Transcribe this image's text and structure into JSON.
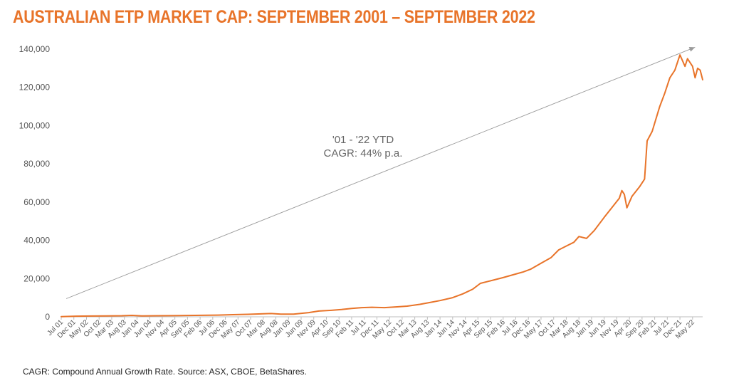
{
  "title": "AUSTRALIAN ETP MARKET CAP: SEPTEMBER 2001 – SEPTEMBER 2022",
  "footnote": "CAGR: Compound Annual Growth Rate. Source: ASX, CBOE, BetaShares.",
  "colors": {
    "title": "#e8742a",
    "line": "#e8742a",
    "trend": "#9a9a9a",
    "axis_text": "#555555",
    "annotation": "#666666"
  },
  "chart_data": {
    "type": "line",
    "ylim": [
      0,
      140000
    ],
    "yticks": [
      0,
      20000,
      40000,
      60000,
      80000,
      100000,
      120000,
      140000
    ],
    "ytick_labels": [
      "0",
      "20,000",
      "40,000",
      "60,000",
      "80,000",
      "100,000",
      "120,000",
      "140,000"
    ],
    "xlim": [
      "2001-07",
      "2022-09"
    ],
    "x_tick_labels": [
      "Jul 01",
      "Dec 01",
      "May 02",
      "Oct 02",
      "Mar 03",
      "Aug 03",
      "Jan 04",
      "Jun 04",
      "Nov 04",
      "Apr 05",
      "Sep 05",
      "Feb 06",
      "Jul 06",
      "Dec 06",
      "May 07",
      "Oct 07",
      "Mar 08",
      "Aug 08",
      "Jan 09",
      "Jun 09",
      "Nov 09",
      "Apr 10",
      "Sep 10",
      "Feb 11",
      "Jul 11",
      "Dec 11",
      "May 12",
      "Oct 12",
      "Mar 13",
      "Aug 13",
      "Jan 14",
      "Jun 14",
      "Nov 14",
      "Apr 15",
      "Sep 15",
      "Feb 16",
      "Jul 16",
      "Dec 16",
      "May 17",
      "Oct 17",
      "Mar 18",
      "Aug 18",
      "Jan 19",
      "Jun 19",
      "Nov 19",
      "Apr 20",
      "Sep 20",
      "Feb 21",
      "Jul 21",
      "Dec 21",
      "May 22"
    ],
    "annotation": {
      "lines": [
        "'01 - '22 YTD",
        "CAGR: 44% p.a."
      ]
    },
    "trend_line": {
      "start": [
        "2001-09",
        9500
      ],
      "end": [
        "2022-06",
        141000
      ]
    },
    "series": [
      {
        "points": [
          [
            "2001-07",
            100
          ],
          [
            "2002-01",
            350
          ],
          [
            "2002-07",
            400
          ],
          [
            "2003-01",
            500
          ],
          [
            "2003-07",
            550
          ],
          [
            "2003-11",
            750
          ],
          [
            "2004-03",
            500
          ],
          [
            "2004-09",
            550
          ],
          [
            "2005-03",
            600
          ],
          [
            "2005-09",
            700
          ],
          [
            "2006-03",
            800
          ],
          [
            "2006-09",
            900
          ],
          [
            "2007-03",
            1100
          ],
          [
            "2007-09",
            1300
          ],
          [
            "2008-03",
            1600
          ],
          [
            "2008-06",
            1700
          ],
          [
            "2008-10",
            1400
          ],
          [
            "2009-03",
            1400
          ],
          [
            "2009-09",
            2200
          ],
          [
            "2010-01",
            3000
          ],
          [
            "2010-06",
            3400
          ],
          [
            "2010-10",
            3800
          ],
          [
            "2011-02",
            4400
          ],
          [
            "2011-06",
            4800
          ],
          [
            "2011-10",
            5000
          ],
          [
            "2012-03",
            4800
          ],
          [
            "2012-08",
            5200
          ],
          [
            "2012-12",
            5600
          ],
          [
            "2013-05",
            6500
          ],
          [
            "2013-09",
            7500
          ],
          [
            "2014-01",
            8500
          ],
          [
            "2014-06",
            10000
          ],
          [
            "2014-10",
            12000
          ],
          [
            "2015-02",
            14500
          ],
          [
            "2015-05",
            17500
          ],
          [
            "2015-08",
            18500
          ],
          [
            "2015-11",
            19500
          ],
          [
            "2016-02",
            20500
          ],
          [
            "2016-06",
            22000
          ],
          [
            "2016-10",
            23500
          ],
          [
            "2017-01",
            25000
          ],
          [
            "2017-05",
            28000
          ],
          [
            "2017-09",
            31000
          ],
          [
            "2017-12",
            35000
          ],
          [
            "2018-03",
            37000
          ],
          [
            "2018-06",
            39000
          ],
          [
            "2018-08",
            42000
          ],
          [
            "2018-11",
            41000
          ],
          [
            "2019-02",
            45000
          ],
          [
            "2019-06",
            52000
          ],
          [
            "2019-09",
            57000
          ],
          [
            "2019-12",
            62000
          ],
          [
            "2020-01",
            66000
          ],
          [
            "2020-02",
            64000
          ],
          [
            "2020-03",
            57000
          ],
          [
            "2020-05",
            63000
          ],
          [
            "2020-08",
            68000
          ],
          [
            "2020-10",
            72000
          ],
          [
            "2020-11",
            92000
          ],
          [
            "2021-01",
            97000
          ],
          [
            "2021-04",
            110000
          ],
          [
            "2021-06",
            117000
          ],
          [
            "2021-08",
            125000
          ],
          [
            "2021-10",
            129000
          ],
          [
            "2021-12",
            137000
          ],
          [
            "2022-02",
            131000
          ],
          [
            "2022-03",
            135000
          ],
          [
            "2022-05",
            131000
          ],
          [
            "2022-06",
            125000
          ],
          [
            "2022-07",
            130000
          ],
          [
            "2022-08",
            129000
          ],
          [
            "2022-09",
            124000
          ]
        ]
      }
    ]
  }
}
